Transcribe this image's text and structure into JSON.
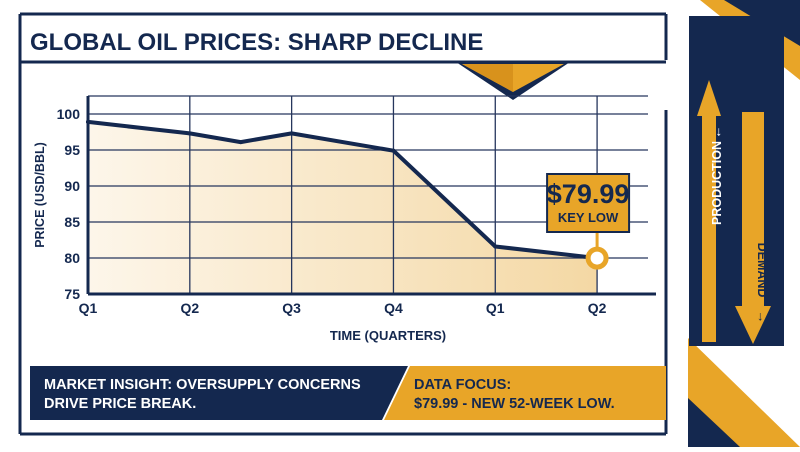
{
  "title": "GLOBAL OIL PRICES: SHARP DECLINE",
  "callout": {
    "price": "$79.99",
    "label": "KEY LOW"
  },
  "sidebar": {
    "production_label": "PRODUCTION",
    "demand_label": "DEMAND"
  },
  "footer": {
    "insight_line1": "MARKET INSIGHT: OVERSUPPLY CONCERNS",
    "insight_line2": "DRIVE PRICE BREAK.",
    "focus_line1": "DATA FOCUS:",
    "focus_line2": "$79.99 - NEW 52-WEEK LOW."
  },
  "colors": {
    "navy": "#14284f",
    "gold": "#e8a528",
    "fill": "#f6dfb4",
    "grid": "#26365d"
  },
  "chart_data": {
    "type": "line",
    "title": "GLOBAL OIL PRICES: SHARP DECLINE",
    "xlabel": "TIME (QUARTERS)",
    "ylabel": "PRICE (USD/BBL)",
    "x_ticks": [
      "Q1",
      "Q2",
      "Q3",
      "Q4",
      "Q1",
      "Q2"
    ],
    "y_ticks": [
      75,
      80,
      85,
      90,
      95,
      100
    ],
    "ylim": [
      75,
      102.5
    ],
    "xlim": [
      0,
      5.5
    ],
    "grid": true,
    "area_fill": true,
    "series": [
      {
        "x": [
          0,
          1,
          1.5,
          2,
          3,
          4,
          5
        ],
        "y": [
          98.9,
          97.3,
          96.1,
          97.3,
          94.9,
          81.6,
          79.99
        ]
      }
    ],
    "highlight": {
      "x": 5,
      "y": 79.99,
      "label": "$79.99",
      "sublabel": "KEY LOW"
    }
  }
}
